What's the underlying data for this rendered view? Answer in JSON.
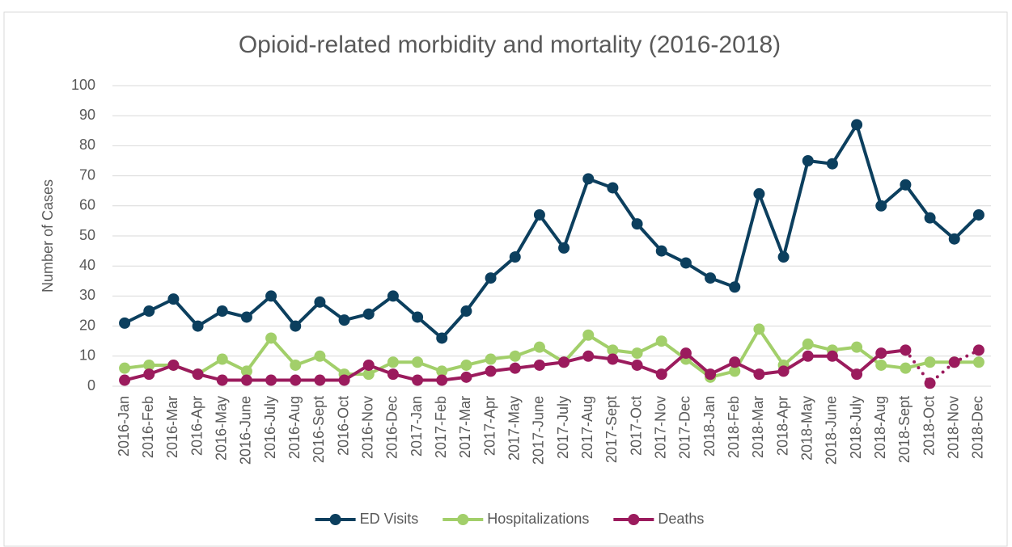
{
  "chart_data": {
    "type": "line",
    "title": "Opioid-related morbidity and mortality (2016-2018)",
    "y_label": "Number of Cases",
    "categories": [
      "2016-Jan",
      "2016-Feb",
      "2016-Mar",
      "2016-Apr",
      "2016-May",
      "2016-June",
      "2016-July",
      "2016-Aug",
      "2016-Sept",
      "2016-Oct",
      "2016-Nov",
      "2016-Dec",
      "2017-Jan",
      "2017-Feb",
      "2017-Mar",
      "2017-Apr",
      "2017-May",
      "2017-June",
      "2017-July",
      "2017-Aug",
      "2017-Sept",
      "2017-Oct",
      "2017-Nov",
      "2017-Dec",
      "2018-Jan",
      "2018-Feb",
      "2018-Mar",
      "2018-Apr",
      "2018-May",
      "2018-June",
      "2018-July",
      "2018-Aug",
      "2018-Sept",
      "2018-Oct",
      "2018-Nov",
      "2018-Dec"
    ],
    "series": [
      {
        "name": "ED Visits",
        "color": "#0c3f5e",
        "values": [
          21,
          25,
          29,
          20,
          25,
          23,
          30,
          20,
          28,
          22,
          24,
          30,
          23,
          16,
          25,
          36,
          43,
          57,
          46,
          69,
          66,
          54,
          45,
          41,
          36,
          33,
          64,
          43,
          75,
          74,
          87,
          60,
          67,
          56,
          49,
          57
        ]
      },
      {
        "name": "Hospitalizations",
        "color": "#a2cf6a",
        "values": [
          6,
          7,
          7,
          4,
          9,
          5,
          16,
          7,
          10,
          4,
          4,
          8,
          8,
          5,
          7,
          9,
          10,
          13,
          8,
          17,
          12,
          11,
          15,
          9,
          3,
          5,
          19,
          7,
          14,
          12,
          13,
          7,
          6,
          8,
          8,
          8
        ]
      },
      {
        "name": "Deaths",
        "color": "#9b1b5d",
        "dotted_from": "2018-Sept",
        "values": [
          2,
          4,
          7,
          4,
          2,
          2,
          2,
          2,
          2,
          2,
          7,
          4,
          2,
          2,
          3,
          5,
          6,
          7,
          8,
          10,
          9,
          7,
          4,
          11,
          4,
          8,
          4,
          5,
          10,
          10,
          4,
          11,
          12,
          1,
          8,
          12
        ]
      }
    ],
    "ylim": [
      0,
      100
    ],
    "yticks": [
      0,
      10,
      20,
      30,
      40,
      50,
      60,
      70,
      80,
      90,
      100
    ],
    "grid": true,
    "legend": "bottom"
  }
}
